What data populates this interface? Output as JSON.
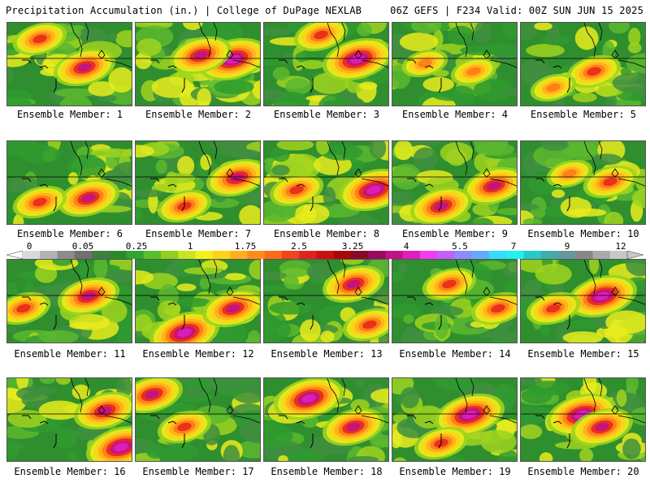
{
  "header": {
    "left": "Precipitation Accumulation (in.) | College of DuPage NEXLAB",
    "right": "06Z GEFS | F234 Valid: 00Z SUN JUN 15 2025"
  },
  "caption_prefix": "Ensemble Member:",
  "members": [
    {
      "label": "Ensemble Member: 1"
    },
    {
      "label": "Ensemble Member: 2"
    },
    {
      "label": "Ensemble Member: 3"
    },
    {
      "label": "Ensemble Member: 4"
    },
    {
      "label": "Ensemble Member: 5"
    },
    {
      "label": "Ensemble Member: 6"
    },
    {
      "label": "Ensemble Member: 7"
    },
    {
      "label": "Ensemble Member: 8"
    },
    {
      "label": "Ensemble Member: 9"
    },
    {
      "label": "Ensemble Member: 10"
    },
    {
      "label": "Ensemble Member: 11"
    },
    {
      "label": "Ensemble Member: 12"
    },
    {
      "label": "Ensemble Member: 13"
    },
    {
      "label": "Ensemble Member: 14"
    },
    {
      "label": "Ensemble Member: 15"
    },
    {
      "label": "Ensemble Member: 16"
    },
    {
      "label": "Ensemble Member: 17"
    },
    {
      "label": "Ensemble Member: 18"
    },
    {
      "label": "Ensemble Member: 19"
    },
    {
      "label": "Ensemble Member: 20"
    }
  ],
  "colorbar": {
    "tick_labels": [
      "0",
      "0.05",
      "0.25",
      "1",
      "1.75",
      "2.5",
      "3.25",
      "4",
      "5.5",
      "7",
      "9",
      "12"
    ],
    "colors": [
      "#d9d9d9",
      "#b3b3b3",
      "#8c8c8c",
      "#707070",
      "#3f7f3f",
      "#2a8a2a",
      "#2ea52e",
      "#55c02a",
      "#8fd11e",
      "#c8e61e",
      "#f2f21a",
      "#ffd21a",
      "#ffb01a",
      "#ff8c1a",
      "#ff6a1a",
      "#f0441a",
      "#e0221a",
      "#cc1010",
      "#a80808",
      "#8a0828",
      "#9a0a5a",
      "#c0128a",
      "#e01ec0",
      "#f03cf0",
      "#c060ff",
      "#8c8cff",
      "#66aaff",
      "#33ddff",
      "#22f0f0",
      "#22cccc",
      "#44aaaa",
      "#669999",
      "#888888",
      "#aaaaaa",
      "#c8c8c8"
    ]
  }
}
